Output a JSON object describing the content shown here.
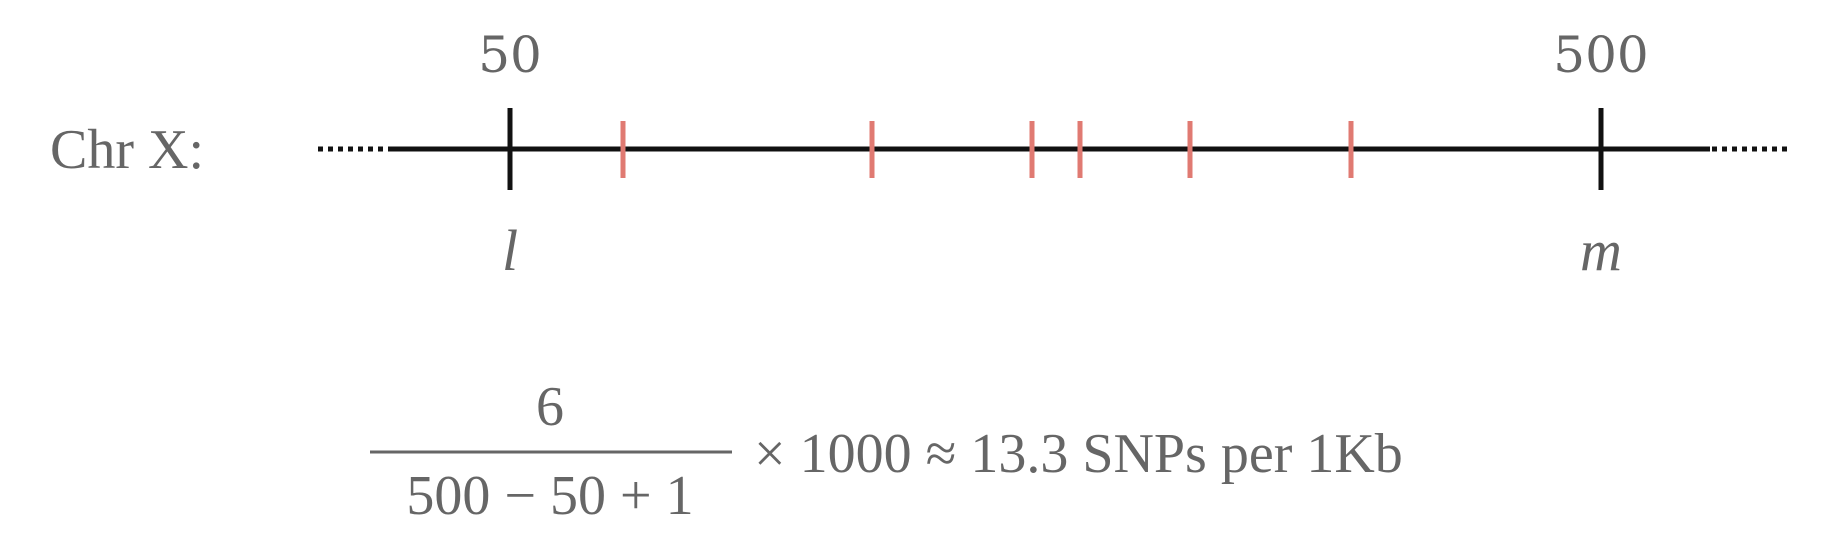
{
  "chromosome": {
    "label": "Chr X:",
    "start_position": "50",
    "end_position": "500",
    "start_symbol": "l",
    "end_symbol": "m"
  },
  "snp_markers": {
    "count": 6,
    "color": "#e07a72"
  },
  "colors": {
    "text": "#666666",
    "axis": "#111111",
    "snp": "#e07a72"
  },
  "formula": {
    "numerator": "6",
    "denominator": "500 − 50 + 1",
    "result": "× 1000 ≈ 13.3 SNPs per 1Kb"
  }
}
